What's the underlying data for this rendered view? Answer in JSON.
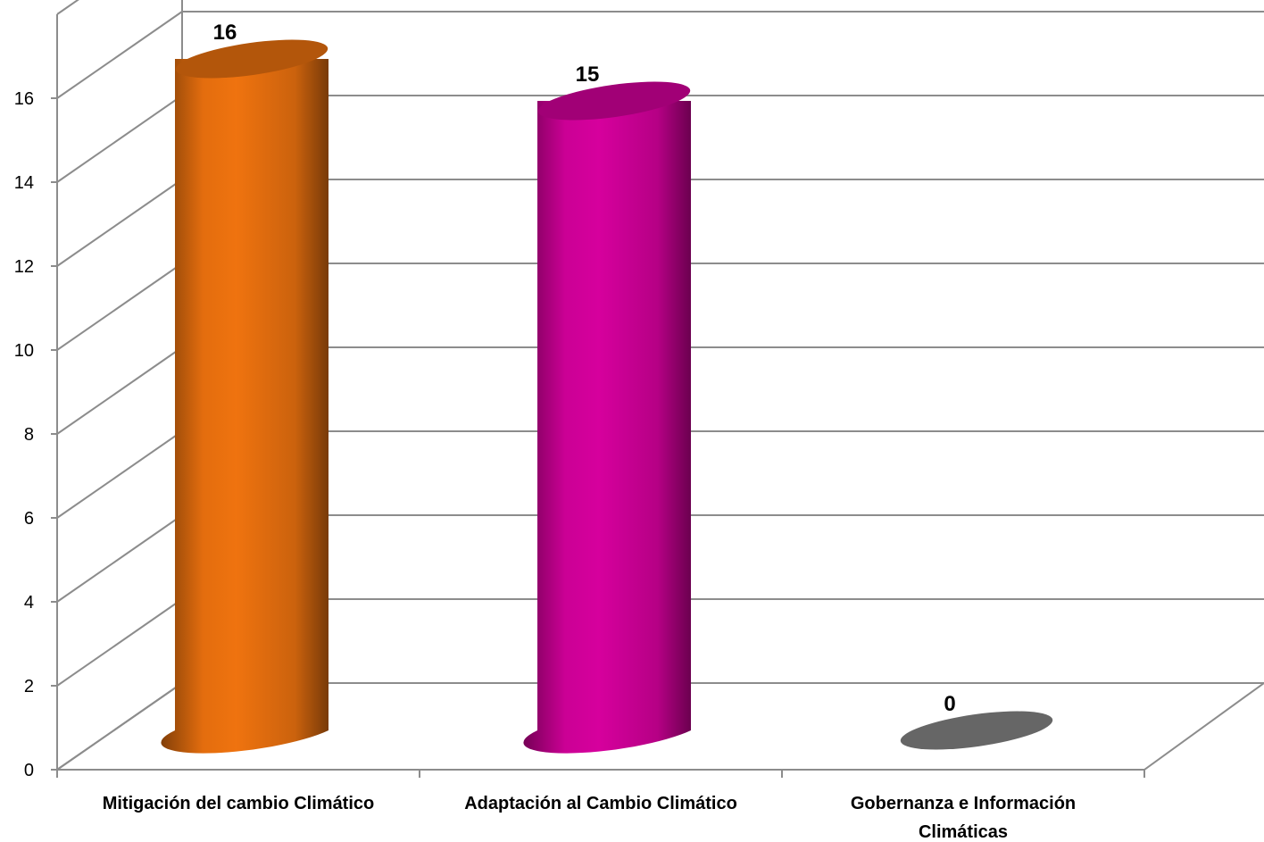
{
  "chart_data": {
    "type": "bar",
    "style": "3d-cylinder",
    "categories": [
      [
        "Mitigación del cambio Climático"
      ],
      [
        "Adaptación al Cambio Climático"
      ],
      [
        "Gobernanza e Información",
        "Climáticas"
      ]
    ],
    "values": [
      16,
      15,
      0
    ],
    "data_labels": [
      "16",
      "15",
      "0"
    ],
    "yticks": [
      "0",
      "2",
      "4",
      "6",
      "8",
      "10",
      "12",
      "14",
      "16"
    ],
    "ylim": [
      0,
      16
    ],
    "grid": true,
    "colors": [
      "#EF730F",
      "#D6009D",
      "#666666"
    ]
  }
}
